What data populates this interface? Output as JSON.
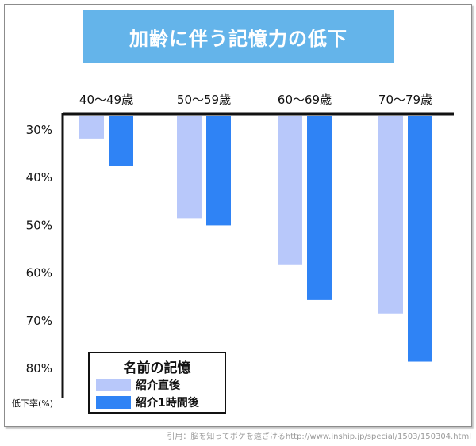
{
  "title": "加齢に伴う記憶力の低下",
  "source": "引用：脳を知ってボケを遠ざけるhttp://www.inship.jp/special/1503/150304.html",
  "colors": {
    "title_bg": "#64b4ea",
    "series_immediate": "#b8c8fa",
    "series_hour": "#2f83f5"
  },
  "chart_data": {
    "type": "bar",
    "title": "加齢に伴う記憶力の低下",
    "ylabel": "低下率(%)",
    "categories": [
      "40～49歳",
      "50～59歳",
      "60～69歳",
      "70～79歳"
    ],
    "y_axis_inverted": true,
    "ylim": [
      27,
      83
    ],
    "yticks": [
      30,
      40,
      50,
      60,
      70,
      80
    ],
    "ytick_labels": [
      "30%",
      "40%",
      "50%",
      "60%",
      "70%",
      "80%"
    ],
    "legend_title": "名前の記憶",
    "legend_position": "bottom-left",
    "grid": false,
    "series": [
      {
        "name": "紹介直後",
        "values": [
          31.8,
          48.5,
          58.2,
          68.5
        ]
      },
      {
        "name": "紹介1時間後",
        "values": [
          37.5,
          50.0,
          65.7,
          78.6
        ]
      }
    ]
  }
}
